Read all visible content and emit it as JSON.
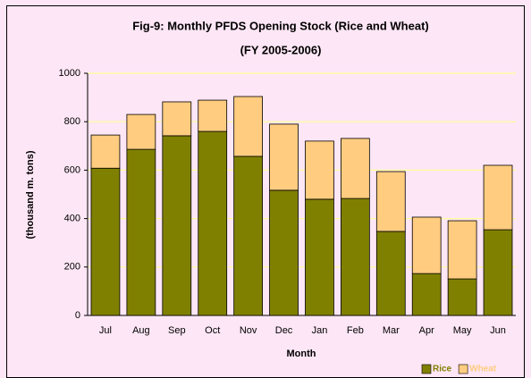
{
  "chart_data": {
    "type": "stacked-bar",
    "title": "Fig-9: Monthly PFDS Opening Stock (Rice and Wheat)",
    "subtitle": "(FY 2005-2006)",
    "x_label": "Month",
    "y_label": "(thousand m. tons)",
    "categories": [
      "Jul",
      "Aug",
      "Sep",
      "Oct",
      "Nov",
      "Dec",
      "Jan",
      "Feb",
      "Mar",
      "Apr",
      "May",
      "Jun"
    ],
    "series": [
      {
        "name": "Rice",
        "color": "#808000",
        "values": [
          608,
          686,
          742,
          760,
          657,
          517,
          480,
          483,
          347,
          173,
          151,
          354
        ]
      },
      {
        "name": "Wheat",
        "color": "#ffcc80",
        "values": [
          137,
          144,
          140,
          129,
          247,
          273,
          240,
          248,
          247,
          233,
          240,
          266
        ]
      }
    ],
    "ylim": [
      0,
      1000
    ],
    "yticks": [
      0,
      200,
      400,
      600,
      800,
      1000
    ],
    "grid": true,
    "legend": "bottom-right"
  }
}
